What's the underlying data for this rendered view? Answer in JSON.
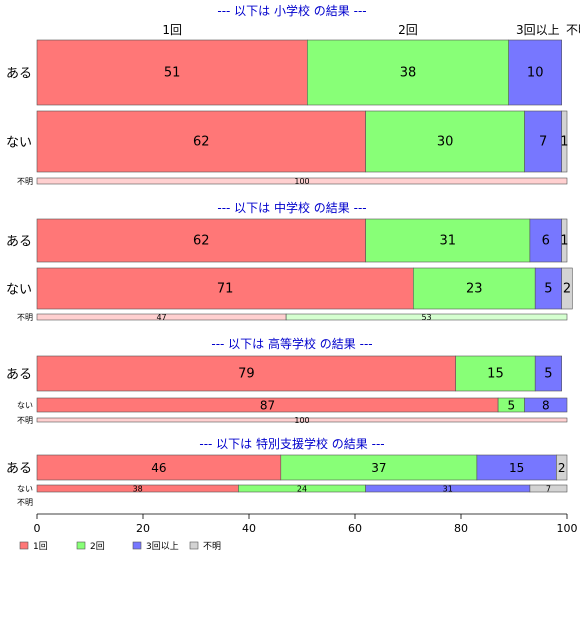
{
  "chart_data": {
    "type": "bar",
    "orientation": "horizontal",
    "stacked": true,
    "xlim": [
      0,
      100
    ],
    "x_ticks": [
      0,
      20,
      40,
      60,
      80,
      100
    ],
    "grid": false,
    "legend_position": "bottom-left",
    "categories": [
      "1回",
      "2回",
      "3回以上",
      "不明"
    ],
    "colors": [
      "#ff7777",
      "#88ff77",
      "#7777ff",
      "#d3d3d3"
    ],
    "top_labels": [
      "1回",
      "2回",
      "3回以上",
      "不明"
    ],
    "panels": [
      {
        "title": "--- 以下は 小学校 の結果 ---",
        "rows": [
          {
            "label": "ある",
            "values": [
              51,
              38,
              10,
              0
            ],
            "labels": [
              "51",
              "38",
              "10",
              ""
            ]
          },
          {
            "label": "ない",
            "values": [
              62,
              30,
              7,
              1
            ],
            "labels": [
              "62",
              "30",
              "7",
              "1"
            ]
          },
          {
            "label": "不明",
            "values": [
              100,
              0,
              0,
              0
            ],
            "labels": [
              "100",
              "",
              "",
              ""
            ]
          }
        ]
      },
      {
        "title": "--- 以下は 中学校 の結果 ---",
        "rows": [
          {
            "label": "ある",
            "values": [
              62,
              31,
              6,
              1
            ],
            "labels": [
              "62",
              "31",
              "6",
              "1"
            ]
          },
          {
            "label": "ない",
            "values": [
              71,
              23,
              5,
              2
            ],
            "labels": [
              "71",
              "23",
              "5",
              "2"
            ]
          },
          {
            "label": "不明",
            "values": [
              47,
              53,
              0,
              0
            ],
            "labels": [
              "47",
              "53",
              "",
              ""
            ]
          }
        ]
      },
      {
        "title": "--- 以下は 高等学校 の結果 ---",
        "rows": [
          {
            "label": "ある",
            "values": [
              79,
              15,
              5,
              0
            ],
            "labels": [
              "79",
              "15",
              "5",
              ""
            ]
          },
          {
            "label": "ない",
            "values": [
              87,
              5,
              8,
              0
            ],
            "labels": [
              "87",
              "5",
              "8",
              ""
            ]
          },
          {
            "label": "不明",
            "values": [
              100,
              0,
              0,
              0
            ],
            "labels": [
              "100",
              "",
              "",
              ""
            ]
          }
        ]
      },
      {
        "title": "--- 以下は 特別支援学校 の結果 ---",
        "rows": [
          {
            "label": "ある",
            "values": [
              46,
              37,
              15,
              2
            ],
            "labels": [
              "46",
              "37",
              "15",
              "2"
            ]
          },
          {
            "label": "ない",
            "values": [
              38,
              24,
              31,
              7
            ],
            "labels": [
              "38",
              "24",
              "31",
              "7"
            ]
          },
          {
            "label": "不明",
            "values": [
              0,
              0,
              0,
              0
            ],
            "labels": [
              "",
              "",
              "",
              ""
            ]
          }
        ]
      }
    ]
  }
}
